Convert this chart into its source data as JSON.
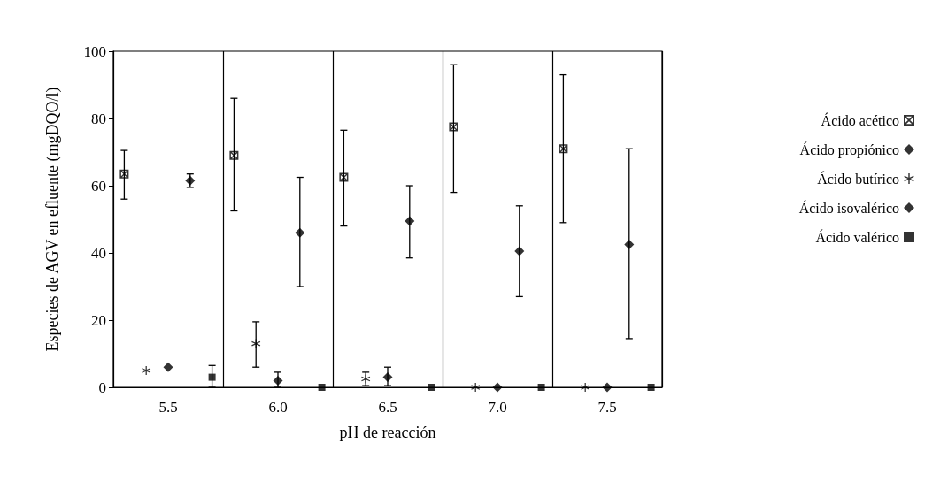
{
  "chart_data": {
    "type": "scatter",
    "xlabel": "pH de reacción",
    "ylabel": "Especies de AGV en efluente (mgDQO/l)",
    "categories": [
      "5.5",
      "6.0",
      "6.5",
      "7.0",
      "7.5"
    ],
    "series": [
      {
        "name": "Ácido acético",
        "color": "#000000",
        "marker": "cross",
        "values": [
          63.5,
          69,
          62.5,
          77.5,
          71
        ],
        "errors": [
          [
            56,
            70.5
          ],
          [
            52.5,
            86
          ],
          [
            48,
            76.5
          ],
          [
            58,
            96
          ],
          [
            49,
            93
          ]
        ]
      },
      {
        "name": "Ácido propiónico",
        "color": "#000000",
        "marker": "diamond",
        "values": [
          61.5,
          46,
          49.5,
          40.5,
          42.5
        ],
        "errors": [
          [
            59.5,
            63.5
          ],
          [
            30,
            62.5
          ],
          [
            38.5,
            60
          ],
          [
            27,
            54
          ],
          [
            14.5,
            71
          ]
        ]
      },
      {
        "name": "Ácido butírico",
        "color": "#000000",
        "marker": "star",
        "values": [
          5,
          13,
          2.5,
          0,
          0
        ],
        "errors": [
          null,
          [
            6,
            19.5
          ],
          [
            0.5,
            4.5
          ],
          null,
          null
        ]
      },
      {
        "name": "Ácido isovalérico",
        "color": "#000000",
        "marker": "diamond",
        "values": [
          6,
          2,
          3,
          0,
          0
        ],
        "errors": [
          null,
          [
            0,
            4.5
          ],
          [
            0.5,
            6
          ],
          null,
          null
        ]
      },
      {
        "name": "Ácido valérico",
        "color": "#000000",
        "marker": "square",
        "values": [
          3,
          0,
          0,
          0,
          0
        ],
        "errors": [
          [
            0,
            6.5
          ],
          null,
          null,
          null,
          null
        ]
      }
    ],
    "ylim": [
      0,
      100
    ],
    "yticks": [
      0,
      20,
      40,
      60,
      80,
      100
    ],
    "grid": "x",
    "legend": "right"
  }
}
